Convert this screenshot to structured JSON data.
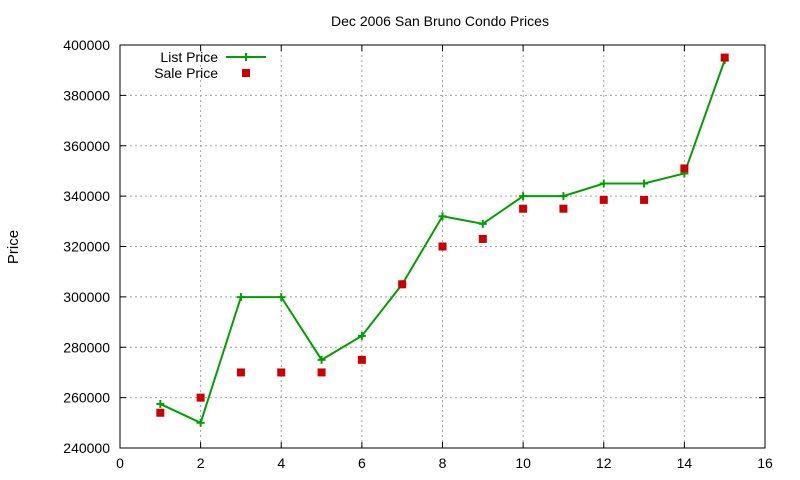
{
  "chart_data": {
    "type": "line",
    "title": "Dec 2006 San Bruno Condo Prices",
    "xlabel": "",
    "ylabel": "Price",
    "xlim": [
      0,
      16
    ],
    "ylim": [
      240000,
      400000
    ],
    "x_ticks": [
      0,
      2,
      4,
      6,
      8,
      10,
      12,
      14,
      16
    ],
    "y_ticks": [
      240000,
      260000,
      280000,
      300000,
      320000,
      340000,
      360000,
      380000,
      400000
    ],
    "grid": true,
    "legend_position": "top-left",
    "series": [
      {
        "name": "List Price",
        "style": "linespoints",
        "marker": "plus",
        "color": "#00a000",
        "x": [
          1,
          2,
          3,
          4,
          5,
          6,
          7,
          8,
          9,
          10,
          11,
          12,
          13,
          14,
          15
        ],
        "values": [
          257500,
          250000,
          299900,
          299900,
          275000,
          284500,
          305000,
          332000,
          329000,
          340000,
          340000,
          345000,
          345000,
          349000,
          394000
        ]
      },
      {
        "name": "Sale Price",
        "style": "points",
        "marker": "square",
        "color": "#cc0000",
        "x": [
          1,
          2,
          3,
          4,
          5,
          6,
          7,
          8,
          9,
          10,
          11,
          12,
          13,
          14,
          15
        ],
        "values": [
          254000,
          260000,
          270000,
          270000,
          270000,
          275000,
          305000,
          320000,
          323000,
          335000,
          335000,
          338500,
          338500,
          351000,
          395000
        ]
      }
    ]
  }
}
